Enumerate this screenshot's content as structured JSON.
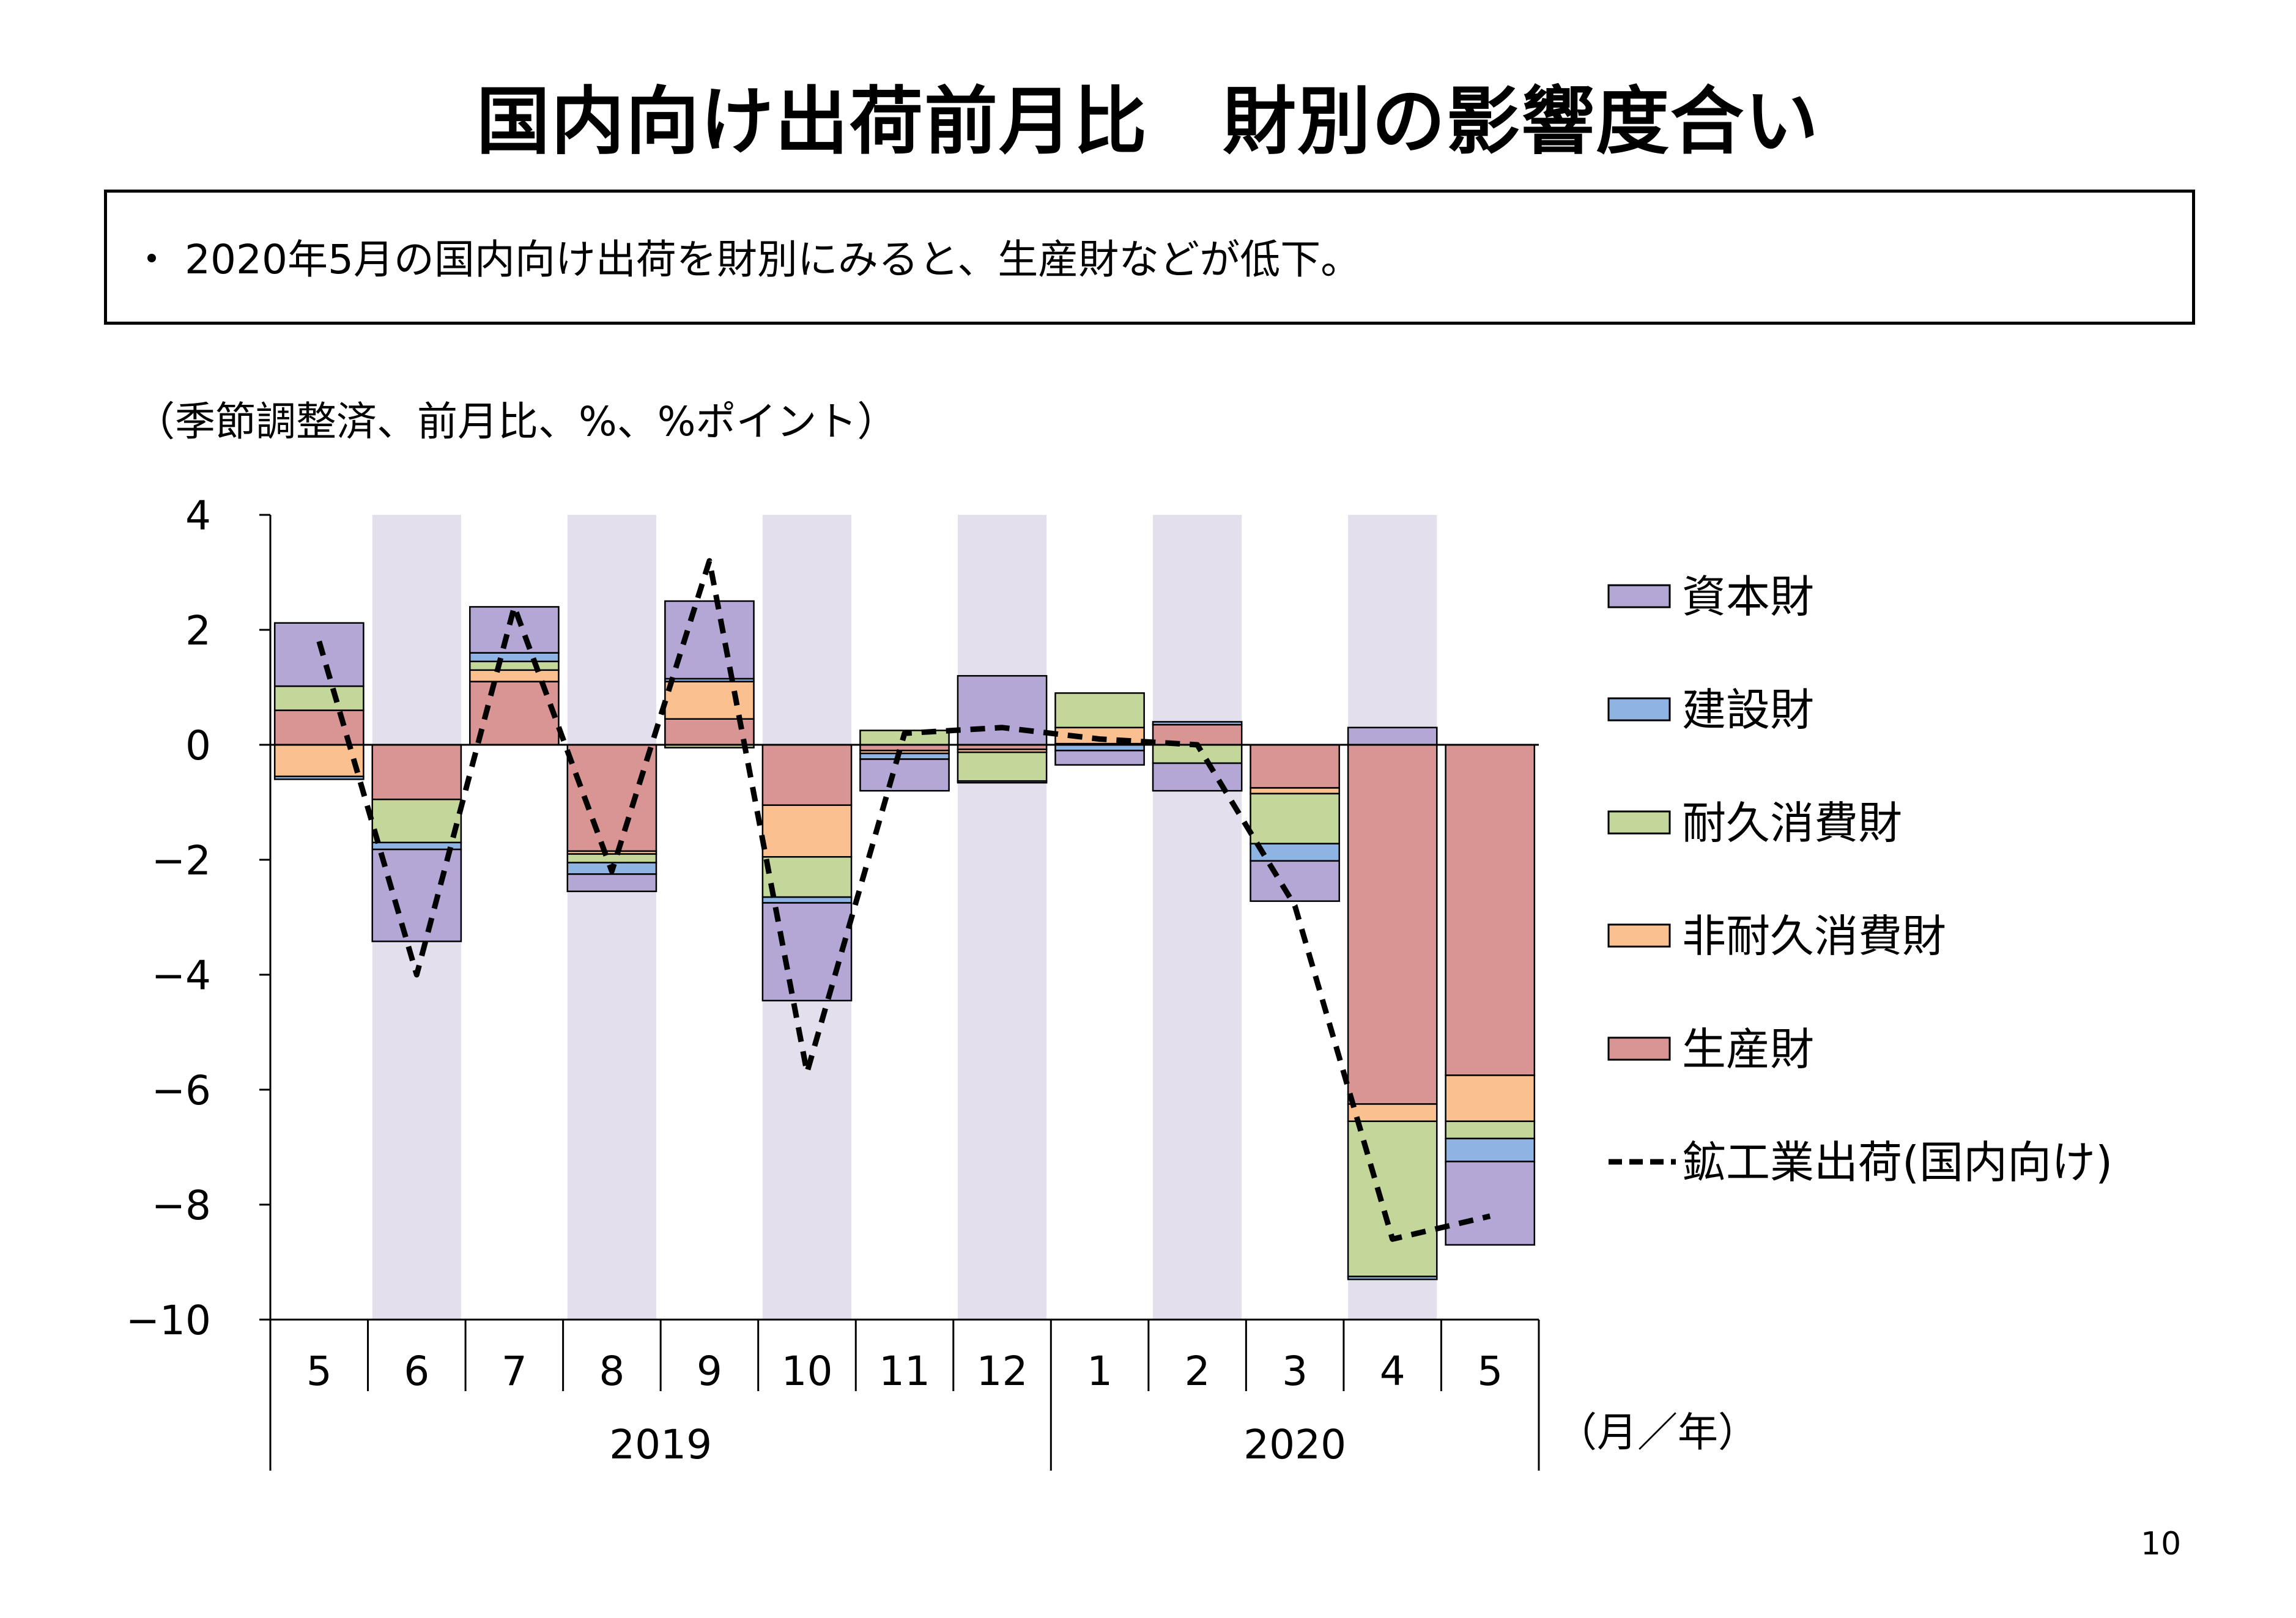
{
  "title": "国内向け出荷前月比　財別の影響度合い",
  "summary": "・ 2020年5月の国内向け出荷を財別にみると、生産財などが低下。",
  "unit_note": "（季節調整済、前月比、%、%ポイント）",
  "page_number": "10",
  "colors": {
    "capital": "#b4a7d6",
    "construction": "#8eb4e3",
    "durable": "#c4d79b",
    "nondurable": "#fac090",
    "producer": "#d99594",
    "shade": "#e4dfec",
    "line": "#000000"
  },
  "chart_data": {
    "type": "bar",
    "stacked": true,
    "categories": [
      "5",
      "6",
      "7",
      "8",
      "9",
      "10",
      "11",
      "12",
      "1",
      "2",
      "3",
      "4",
      "5"
    ],
    "year_labels": [
      {
        "label": "2019",
        "from": 0,
        "to": 7
      },
      {
        "label": "2020",
        "from": 8,
        "to": 12
      }
    ],
    "x_unit_label": "（月／年）",
    "ylim": [
      -10,
      4
    ],
    "yticks": [
      4,
      2,
      0,
      -2,
      -4,
      -6,
      -8,
      -10
    ],
    "ytick_labels": [
      "4",
      "2",
      "0",
      "−2",
      "−4",
      "−6",
      "−8",
      "−10"
    ],
    "shaded_categories": [
      1,
      3,
      5,
      7,
      9,
      11
    ],
    "series": [
      {
        "name": "生産財",
        "key": "producer",
        "color": "#d99594",
        "values": [
          0.6,
          -0.95,
          1.1,
          -1.85,
          0.45,
          -1.05,
          -0.1,
          -0.08,
          0.02,
          0.35,
          -0.75,
          -6.25,
          -5.75
        ]
      },
      {
        "name": "非耐久消費財",
        "key": "nondurable",
        "color": "#fac090",
        "values": [
          -0.55,
          0.0,
          0.2,
          -0.05,
          0.65,
          -0.9,
          -0.05,
          -0.05,
          0.28,
          0.0,
          -0.1,
          -0.3,
          -0.8
        ]
      },
      {
        "name": "耐久消費財",
        "key": "durable",
        "color": "#c4d79b",
        "values": [
          0.42,
          -0.75,
          0.15,
          -0.15,
          -0.05,
          -0.7,
          0.25,
          -0.5,
          0.6,
          -0.32,
          -0.87,
          -2.7,
          -0.3
        ]
      },
      {
        "name": "建設財",
        "key": "construction",
        "color": "#8eb4e3",
        "values": [
          -0.05,
          -0.12,
          0.15,
          -0.2,
          0.05,
          -0.1,
          -0.1,
          -0.03,
          -0.1,
          0.05,
          -0.3,
          -0.05,
          -0.4
        ]
      },
      {
        "name": "資本財",
        "key": "capital",
        "color": "#b4a7d6",
        "values": [
          1.1,
          -1.6,
          0.8,
          -0.3,
          1.35,
          -1.7,
          -0.55,
          1.2,
          -0.25,
          -0.48,
          -0.7,
          0.3,
          -1.45
        ]
      }
    ],
    "line": {
      "name": "鉱工業出荷(国内向け)",
      "dashed": true,
      "values": [
        1.8,
        -4.0,
        2.4,
        -2.2,
        3.2,
        -5.7,
        0.2,
        0.3,
        0.1,
        0.0,
        -2.8,
        -8.6,
        -8.2
      ]
    },
    "legend_order": [
      "資本財",
      "建設財",
      "耐久消費財",
      "非耐久消費財",
      "生産財",
      "鉱工業出荷(国内向け)"
    ],
    "legend_placement": "right"
  }
}
